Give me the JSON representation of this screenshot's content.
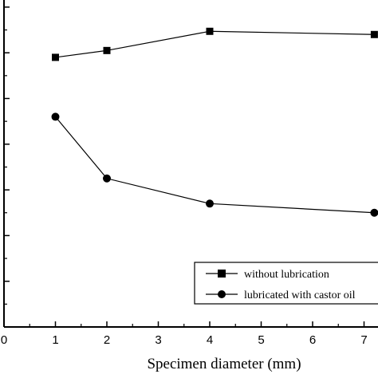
{
  "chart_data": {
    "type": "line",
    "title": "",
    "xlabel": "Specimen diameter (mm)",
    "ylabel": "",
    "xlim": [
      0,
      7.2
    ],
    "ylim": [
      0,
      7
    ],
    "x_ticks": [
      0,
      1,
      2,
      3,
      4,
      5,
      6,
      7
    ],
    "y_ticks": [
      0,
      1,
      2,
      3,
      4,
      5,
      6,
      7
    ],
    "grid": false,
    "legend_position": "lower-right",
    "series": [
      {
        "name": "without lubrication",
        "marker": "square",
        "color": "#000000",
        "x": [
          1,
          2,
          4,
          7.2
        ],
        "y": [
          5.9,
          6.05,
          6.47,
          6.4
        ]
      },
      {
        "name": "lubricated with castor oil",
        "marker": "circle",
        "color": "#000000",
        "x": [
          1,
          2,
          4,
          7.2
        ],
        "y": [
          4.6,
          3.25,
          2.7,
          2.5
        ]
      }
    ]
  }
}
